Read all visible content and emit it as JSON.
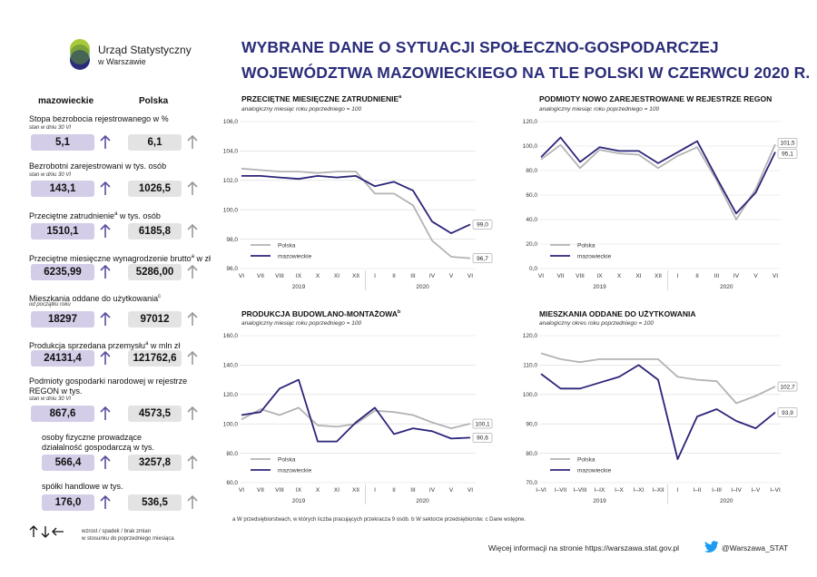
{
  "header": {
    "org_name": "Urząd Statystyczny",
    "org_city": "w Warszawie",
    "title_line1": "WYBRANE DANE O SYTUACJI SPOŁECZNO-GOSPODARCZEJ",
    "title_line2": "WOJEWÓDZTWA MAZOWIECKIEGO NA TLE POLSKI W CZERWCU 2020 R."
  },
  "columns": {
    "region": "mazowieckie",
    "country": "Polska"
  },
  "indicators": [
    {
      "label": "Stopa bezrobocia rejestrowanego w %",
      "sub": "stan w dniu 30 VI",
      "region": "5,1",
      "country": "6,1",
      "region_trend": "up",
      "country_trend": "up"
    },
    {
      "label": "Bezrobotni zarejestrowani w tys. osób",
      "sub": "stan w dniu 30 VI",
      "region": "143,1",
      "country": "1026,5",
      "region_trend": "up",
      "country_trend": "up"
    },
    {
      "label": "Przeciętne zatrudnienie",
      "sup": "a",
      "label_rest": " w tys. osób",
      "sub": "",
      "region": "1510,1",
      "country": "6185,8",
      "region_trend": "up",
      "country_trend": "up"
    },
    {
      "label": "Przeciętne miesięczne wynagrodzenie brutto",
      "sup": "a",
      "label_rest": " w zł",
      "sub": "",
      "region": "6235,99",
      "country": "5286,00",
      "region_trend": "up",
      "country_trend": "up"
    },
    {
      "label": "Mieszkania oddane do użytkowania",
      "sup": "c",
      "label_rest": "",
      "sub": "od początku roku",
      "region": "18297",
      "country": "97012",
      "region_trend": "up",
      "country_trend": "up"
    },
    {
      "label": "Produkcja sprzedana przemysłu",
      "sup": "a",
      "label_rest": " w mln zł",
      "sub": "",
      "region": "24131,4",
      "country": "121762,6",
      "region_trend": "up",
      "country_trend": "up"
    },
    {
      "label": "Podmioty gospodarki narodowej w rejestrze REGON w tys.",
      "sub": "stan w dniu 30 VI",
      "region": "867,6",
      "country": "4573,5",
      "region_trend": "up",
      "country_trend": "up"
    },
    {
      "label": "osoby fizyczne prowadzące działalność gospodarczą w tys.",
      "sub": "",
      "region": "566,4",
      "country": "3257,8",
      "region_trend": "up",
      "country_trend": "up"
    },
    {
      "label": "spółki handlowe w tys.",
      "sub": "",
      "region": "176,0",
      "country": "536,5",
      "region_trend": "up",
      "country_trend": "up"
    }
  ],
  "legend": {
    "line1": "wzrost / spadek / brak zmian",
    "line2": "w stosunku do poprzedniego miesiąca"
  },
  "footnote": "a W przedsiębiorstwach, w których liczba pracujących przekracza 9 osób.  b W sektorze przedsiębiorstw.  c Dane wstępne.",
  "footer": {
    "more": "Więcej informacji na stronie https://warszawa.stat.gov.pl",
    "twitter": "@Warszawa_STAT"
  },
  "colors": {
    "region": "#2b2479",
    "country": "#b3b3b3",
    "title": "#2b2d7a"
  },
  "chart_data": [
    {
      "id": "zatrudnienie",
      "type": "line",
      "title": "PRZECIĘTNE MIESIĘCZNE ZATRUDNIENIE",
      "title_sup": "a",
      "subtitle": "analogiczny miesiąc roku poprzedniego = 100",
      "categories": [
        "VI",
        "VII",
        "VIII",
        "IX",
        "X",
        "XI",
        "XII",
        "I",
        "II",
        "III",
        "IV",
        "V",
        "VI"
      ],
      "year_labels": [
        {
          "label": "2019",
          "at": 3
        },
        {
          "label": "2020",
          "at": 9.5
        }
      ],
      "ylim": [
        96.0,
        106.0
      ],
      "yticks": [
        "96,0",
        "98,0",
        "100,0",
        "102,0",
        "104,0",
        "106,0"
      ],
      "series": [
        {
          "name": "Polska",
          "values": [
            102.8,
            102.7,
            102.6,
            102.6,
            102.5,
            102.6,
            102.6,
            101.1,
            101.1,
            100.3,
            97.9,
            96.8,
            96.7
          ],
          "end_label": "96,7"
        },
        {
          "name": "mazowieckie",
          "values": [
            102.3,
            102.3,
            102.2,
            102.1,
            102.3,
            102.2,
            102.3,
            101.6,
            101.9,
            101.3,
            99.2,
            98.4,
            99.0
          ],
          "end_label": "99,0"
        }
      ]
    },
    {
      "id": "regon",
      "type": "line",
      "title": "PODMIOTY NOWO ZAREJESTROWANE W REJESTRZE REGON",
      "subtitle": "analogiczny miesiąc roku poprzedniego = 100",
      "categories": [
        "VI",
        "VII",
        "VIII",
        "IX",
        "X",
        "XI",
        "XII",
        "I",
        "II",
        "III",
        "IV",
        "V",
        "VI"
      ],
      "year_labels": [
        {
          "label": "2019",
          "at": 3
        },
        {
          "label": "2020",
          "at": 9.5
        }
      ],
      "ylim": [
        0,
        120
      ],
      "yticks": [
        "0,0",
        "20,0",
        "40,0",
        "60,0",
        "80,0",
        "100,0",
        "120,0"
      ],
      "series": [
        {
          "name": "Polska",
          "values": [
            89,
            101,
            82,
            97,
            94,
            93,
            82,
            92,
            99,
            72,
            40,
            65,
            101.5
          ],
          "end_label": "101,5"
        },
        {
          "name": "mazowieckie",
          "values": [
            91,
            107,
            87,
            99,
            96,
            96,
            86,
            95,
            104,
            74,
            45,
            62,
            95.1
          ],
          "end_label": "95,1"
        }
      ]
    },
    {
      "id": "budowlana",
      "type": "line",
      "title": "PRODUKCJA BUDOWLANO-MONTAŻOWA",
      "title_sup": "b",
      "subtitle": "analogiczny miesiąc roku poprzedniego = 100",
      "categories": [
        "VI",
        "VII",
        "VIII",
        "IX",
        "X",
        "XI",
        "XII",
        "I",
        "II",
        "III",
        "IV",
        "V",
        "VI"
      ],
      "year_labels": [
        {
          "label": "2019",
          "at": 3
        },
        {
          "label": "2020",
          "at": 9.5
        }
      ],
      "ylim": [
        60,
        160
      ],
      "yticks": [
        "60,0",
        "80,0",
        "100,0",
        "120,0",
        "140,0",
        "160,0"
      ],
      "series": [
        {
          "name": "Polska",
          "values": [
            103,
            110,
            106,
            111,
            99,
            98,
            100,
            109,
            108,
            106,
            101,
            97,
            100.1
          ],
          "end_label": "100,1"
        },
        {
          "name": "mazowieckie",
          "values": [
            106,
            108,
            124,
            130,
            88,
            88,
            101,
            111,
            93,
            97,
            95,
            90,
            90.6
          ],
          "end_label": "90,6"
        }
      ]
    },
    {
      "id": "mieszkania",
      "type": "line",
      "title": "MIESZKANIA ODDANE DO UŻYTKOWANIA",
      "subtitle": "analogiczny okres roku poprzedniego = 100",
      "categories": [
        "I–VI",
        "I–VII",
        "I–VIII",
        "I–IX",
        "I–X",
        "I–XI",
        "I–XII",
        "I",
        "I–II",
        "I–III",
        "I–IV",
        "I–V",
        "I–VI"
      ],
      "year_labels": [
        {
          "label": "2019",
          "at": 3
        },
        {
          "label": "2020",
          "at": 9.5
        }
      ],
      "ylim": [
        70,
        120
      ],
      "yticks": [
        "70,0",
        "80,0",
        "90,0",
        "100,0",
        "110,0",
        "120,0"
      ],
      "series": [
        {
          "name": "Polska",
          "values": [
            114,
            112,
            111,
            112,
            112,
            112,
            112,
            106,
            105,
            104.5,
            97,
            99.5,
            102.7
          ],
          "end_label": "102,7"
        },
        {
          "name": "mazowieckie",
          "values": [
            107,
            102,
            102,
            104,
            106,
            110,
            105,
            78,
            92.5,
            95,
            91,
            88.5,
            93.9
          ],
          "end_label": "93,9"
        }
      ]
    }
  ]
}
